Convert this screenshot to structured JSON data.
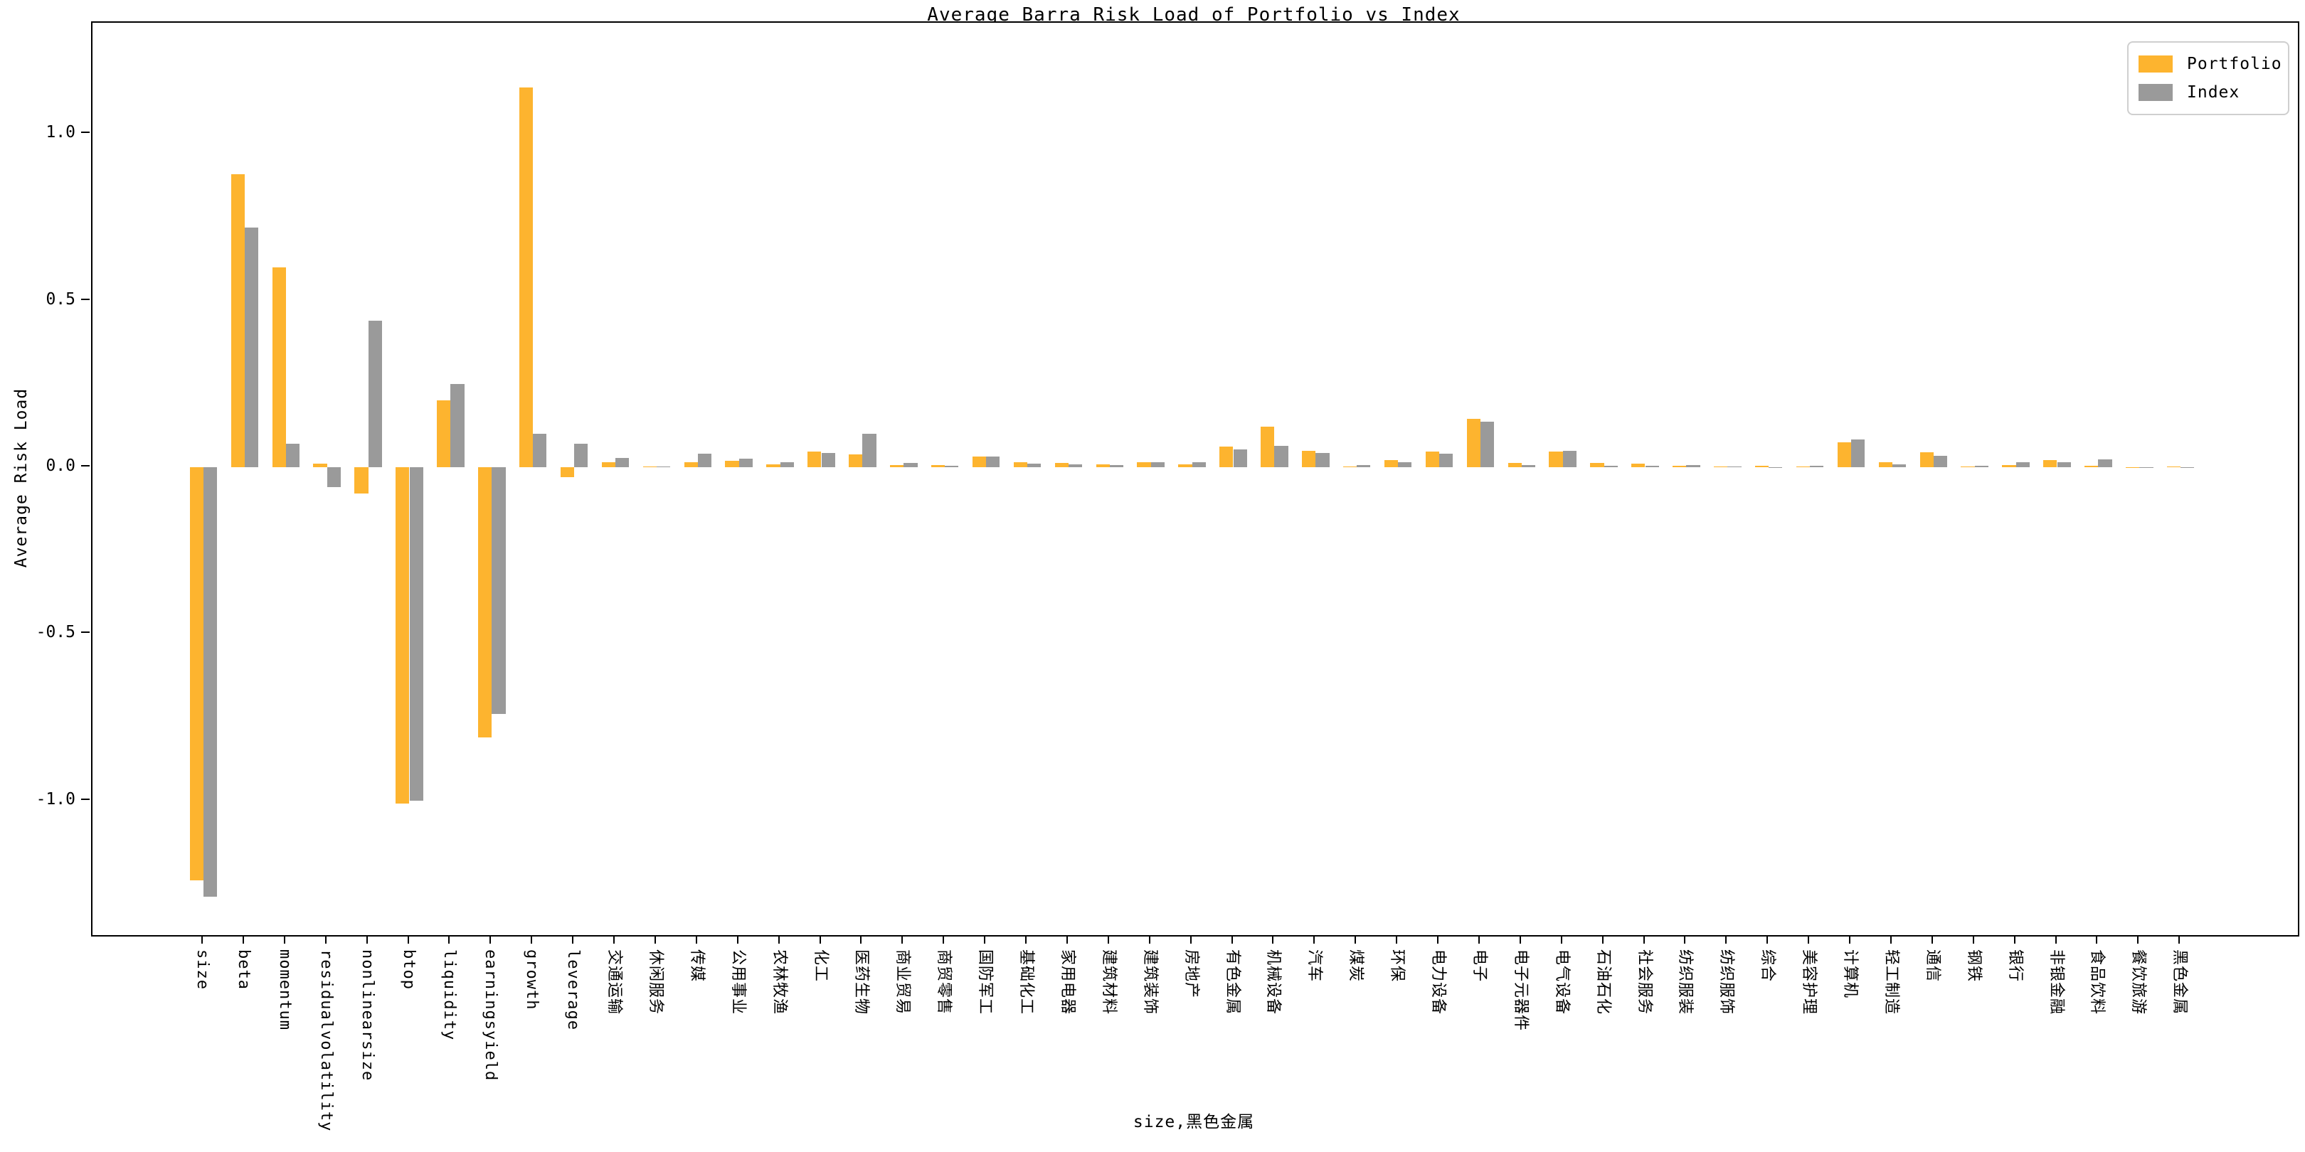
{
  "title": "Average Barra Risk Load of Portfolio vs Index",
  "ylabel": "Average Risk Load",
  "xlabel": "size,黑色金属",
  "legend": {
    "portfolio_label": "Portfolio",
    "index_label": "Index"
  },
  "colors": {
    "portfolio": "#FDB42F",
    "index": "#9A9A9A",
    "spine": "#000000",
    "legend_border": "#cfcfcf"
  },
  "chart_data": {
    "type": "bar",
    "title": "Average Barra Risk Load of Portfolio vs Index",
    "xlabel": "size,黑色金属",
    "ylabel": "Average Risk Load",
    "grid": false,
    "legend_position": "upper right",
    "ylim": [
      -1.4,
      1.33
    ],
    "yticks": [
      1.0,
      0.5,
      0.0,
      -0.5,
      -1.0
    ],
    "categories": [
      "size",
      "beta",
      "momentum",
      "residualvolatility",
      "nonlinearsize",
      "btop",
      "liquidity",
      "earningsyield",
      "growth",
      "leverage",
      "交通运输",
      "休闲服务",
      "传媒",
      "公用事业",
      "农林牧渔",
      "化工",
      "医药生物",
      "商业贸易",
      "商贸零售",
      "国防军工",
      "基础化工",
      "家用电器",
      "建筑材料",
      "建筑装饰",
      "房地产",
      "有色金属",
      "机械设备",
      "汽车",
      "煤炭",
      "环保",
      "电力设备",
      "电子",
      "电子元器件",
      "电气设备",
      "石油石化",
      "社会服务",
      "纺织服装",
      "纺织服饰",
      "综合",
      "美容护理",
      "计算机",
      "轻工制造",
      "通信",
      "钢铁",
      "银行",
      "非银金融",
      "食品饮料",
      "餐饮旅游",
      "黑色金属"
    ],
    "series": [
      {
        "name": "Portfolio",
        "values": [
          -1.24,
          0.88,
          0.6,
          0.01,
          -0.08,
          -1.01,
          0.2,
          -0.81,
          1.14,
          -0.03,
          0.016,
          0.002,
          0.016,
          0.019,
          0.009,
          0.046,
          0.038,
          0.007,
          0.006,
          0.033,
          0.016,
          0.012,
          0.009,
          0.016,
          0.009,
          0.062,
          0.122,
          0.049,
          0.002,
          0.022,
          0.046,
          0.146,
          0.012,
          0.047,
          0.012,
          0.011,
          0.004,
          0.003,
          0.005,
          0.002,
          0.075,
          0.014,
          0.044,
          0.003,
          0.006,
          0.022,
          0.004,
          0.001,
          0.003
        ]
      },
      {
        "name": "Index",
        "values": [
          -1.29,
          0.72,
          0.07,
          -0.06,
          0.44,
          -1.0,
          0.25,
          -0.74,
          0.1,
          0.07,
          0.028,
          0.002,
          0.04,
          0.025,
          0.016,
          0.042,
          0.1,
          0.012,
          0.004,
          0.031,
          0.011,
          0.008,
          0.006,
          0.014,
          0.016,
          0.053,
          0.065,
          0.043,
          0.006,
          0.016,
          0.04,
          0.137,
          0.007,
          0.049,
          0.004,
          0.004,
          0.006,
          0.002,
          0.001,
          0.004,
          0.083,
          0.008,
          0.034,
          0.005,
          0.014,
          0.016,
          0.023,
          0.001,
          0.001
        ]
      }
    ]
  }
}
